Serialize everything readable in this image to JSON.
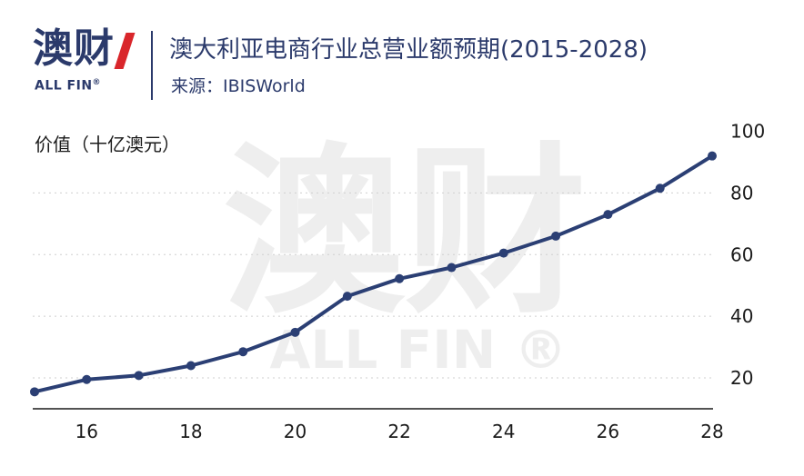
{
  "logo": {
    "main": "澳财",
    "sub": "ALL FIN",
    "reg": "®"
  },
  "header": {
    "title": "澳大利亚电商行业总营业额预期(2015-2028)",
    "source": "来源：IBISWorld"
  },
  "watermark": {
    "main": "澳财",
    "sub": "ALL FIN ®"
  },
  "chart_data": {
    "type": "line",
    "ylabel": "价值（十亿澳元）",
    "x": [
      15,
      16,
      17,
      18,
      19,
      20,
      21,
      22,
      23,
      24,
      25,
      26,
      27,
      28
    ],
    "series": [
      {
        "values": [
          15.5,
          19.5,
          20.8,
          24.0,
          28.5,
          34.8,
          46.5,
          52.2,
          55.8,
          60.5,
          66.0,
          73.0,
          81.5,
          92.0
        ]
      }
    ],
    "x_ticks": [
      "16",
      "18",
      "20",
      "22",
      "24",
      "26",
      "28"
    ],
    "x_tick_values": [
      16,
      18,
      20,
      22,
      24,
      26,
      28
    ],
    "y_ticks": [
      "100",
      "80",
      "60",
      "40",
      "20"
    ],
    "y_tick_values": [
      100,
      80,
      60,
      40,
      20
    ],
    "xlim": [
      15,
      28
    ],
    "ylim": [
      10,
      100
    ],
    "grid": true,
    "line_color": "#2b3f74"
  }
}
